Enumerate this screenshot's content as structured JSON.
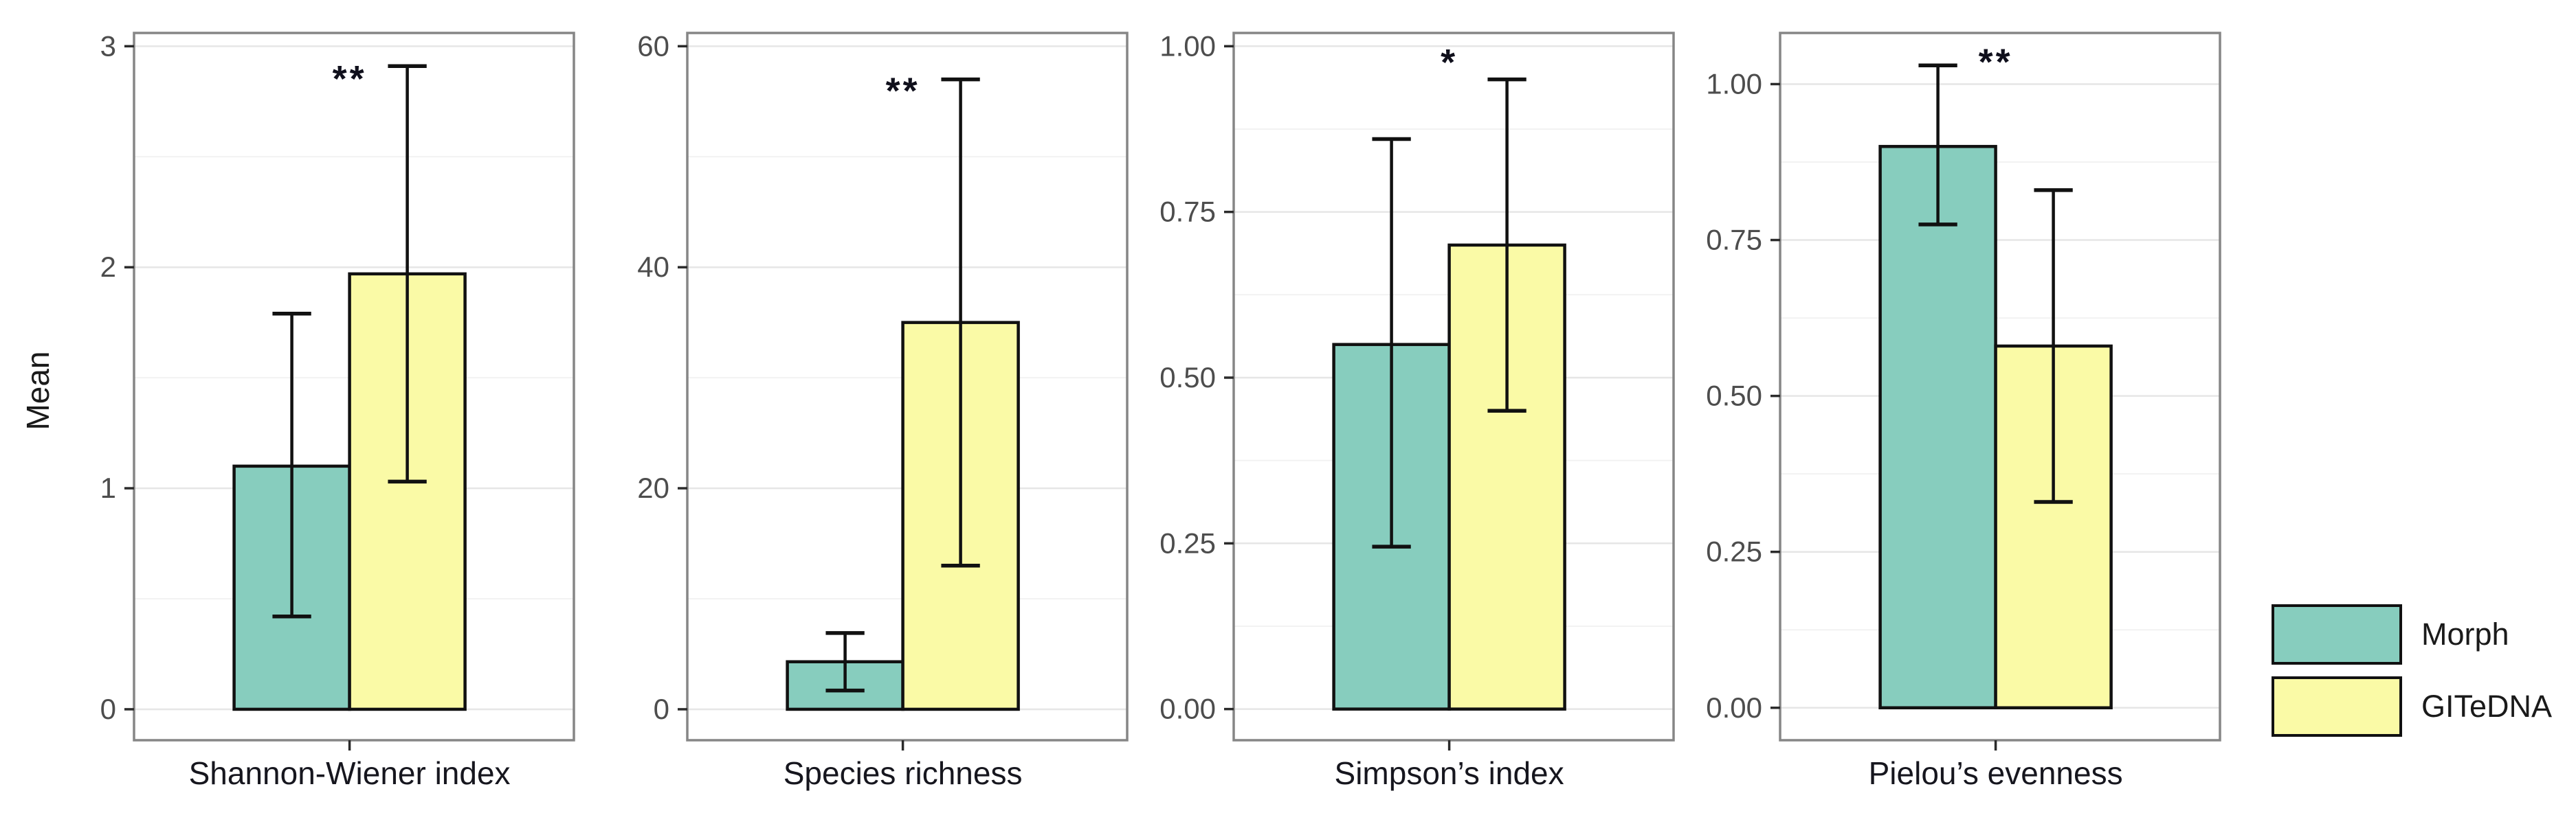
{
  "figure": {
    "background_color": "#ffffff",
    "panel_border_color": "#868686",
    "grid_major_color": "#e6e6e6",
    "grid_minor_color": "#f2f2f2",
    "bar_outline_color": "#111111",
    "errorbar_color": "#111111",
    "tick_label_color": "#4d4d4d",
    "tick_mark_color": "#2b2b2b",
    "category_label_color": "#16161e",
    "significance_color": "#10101c"
  },
  "legend": {
    "items": [
      {
        "label": "Morph",
        "color": "#87CDBE"
      },
      {
        "label": "GITeDNA",
        "color": "#FAFAA6"
      }
    ]
  },
  "chart_data": {
    "type": "bar",
    "title": "",
    "xlabel": "",
    "ylabel": "Mean",
    "grid": true,
    "legend_position": "bottom-right",
    "series_names": [
      "Morph",
      "GITeDNA"
    ],
    "series_colors": [
      "#87CDBE",
      "#FAFAA6"
    ],
    "panels": [
      {
        "category": "Shannon-Wiener index",
        "significance": {
          "label": "**",
          "y": 2.88
        },
        "yticks": [
          0,
          1,
          2,
          3
        ],
        "ytick_labels": [
          "0",
          "1",
          "2",
          "3"
        ],
        "ylim": [
          -0.14,
          3.06
        ],
        "bars": [
          {
            "series": "Morph",
            "mean": 1.1,
            "err_low": 0.42,
            "err_high": 1.79
          },
          {
            "series": "GITeDNA",
            "mean": 1.97,
            "err_low": 1.03,
            "err_high": 2.91
          }
        ]
      },
      {
        "category": "Species richness",
        "significance": {
          "label": "**",
          "y": 56.5
        },
        "yticks": [
          0,
          20,
          40,
          60
        ],
        "ytick_labels": [
          "0",
          "20",
          "40",
          "60"
        ],
        "ylim": [
          -2.8,
          61.2
        ],
        "bars": [
          {
            "series": "Morph",
            "mean": 4.3,
            "err_low": 1.7,
            "err_high": 6.9
          },
          {
            "series": "GITeDNA",
            "mean": 35.0,
            "err_low": 13.0,
            "err_high": 57.0
          }
        ]
      },
      {
        "category": "Simpson’s index",
        "significance": {
          "label": "*",
          "y": 0.985
        },
        "yticks": [
          0,
          0.25,
          0.5,
          0.75,
          1
        ],
        "ytick_labels": [
          "0.00",
          "0.25",
          "0.50",
          "0.75",
          "1.00"
        ],
        "ylim": [
          -0.047,
          1.02
        ],
        "bars": [
          {
            "series": "Morph",
            "mean": 0.55,
            "err_low": 0.245,
            "err_high": 0.86
          },
          {
            "series": "GITeDNA",
            "mean": 0.7,
            "err_low": 0.45,
            "err_high": 0.95
          }
        ]
      },
      {
        "category": "Pielou’s evenness",
        "significance": {
          "label": "**",
          "y": 1.045
        },
        "yticks": [
          0,
          0.25,
          0.5,
          0.75,
          1
        ],
        "ytick_labels": [
          "0.00",
          "0.25",
          "0.50",
          "0.75",
          "1.00"
        ],
        "ylim": [
          -0.052,
          1.082
        ],
        "bars": [
          {
            "series": "Morph",
            "mean": 0.9,
            "err_low": 0.775,
            "err_high": 1.03
          },
          {
            "series": "GITeDNA",
            "mean": 0.58,
            "err_low": 0.33,
            "err_high": 0.83
          }
        ]
      }
    ]
  }
}
